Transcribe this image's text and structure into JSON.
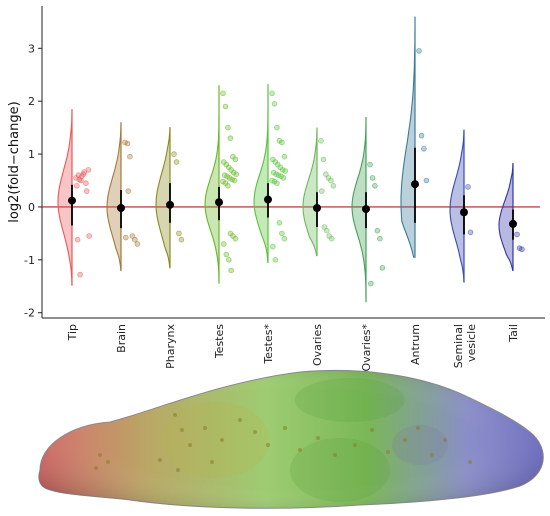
{
  "chart_data": {
    "type": "violin",
    "ylabel": "log2(fold−change)",
    "xlabel": "",
    "ylim": [
      -2.1,
      3.8
    ],
    "yticks": [
      -2,
      -1,
      0,
      1,
      2,
      3
    ],
    "reference_line_y": 0,
    "grid": false,
    "categories": [
      "Tip",
      "Brain",
      "Pharynx",
      "Testes",
      "Testes*",
      "Ovaries",
      "Ovaries*",
      "Antrum",
      "Seminal vesicle",
      "Tail"
    ],
    "category_label_lines": [
      [
        "Tip"
      ],
      [
        "Brain"
      ],
      [
        "Pharynx"
      ],
      [
        "Testes"
      ],
      [
        "Testes*"
      ],
      [
        "Ovaries"
      ],
      [
        "Ovaries*"
      ],
      [
        "Antrum"
      ],
      [
        "Seminal",
        "vesicle"
      ],
      [
        "Tail"
      ]
    ],
    "series": [
      {
        "category": "Tip",
        "color": "#e8595a",
        "median": 0.12,
        "q1": -0.35,
        "q3": 0.42,
        "min": -1.48,
        "max": 1.85,
        "mode": 0.1,
        "points": [
          0.55,
          0.6,
          0.5,
          0.62,
          0.45,
          0.7,
          0.4,
          0.52,
          0.58,
          0.66,
          0.3,
          -0.55,
          -0.62,
          -1.28
        ]
      },
      {
        "category": "Brain",
        "color": "#a57838",
        "median": -0.02,
        "q1": -0.4,
        "q3": 0.32,
        "min": -1.2,
        "max": 1.6,
        "mode": 0.0,
        "points": [
          1.22,
          1.2,
          0.95,
          -0.55,
          -0.62,
          -0.7,
          -0.58,
          0.3
        ]
      },
      {
        "category": "Pharynx",
        "color": "#8a8a22",
        "median": 0.04,
        "q1": -0.3,
        "q3": 0.45,
        "min": -1.15,
        "max": 1.5,
        "mode": 0.05,
        "points": [
          1.0,
          0.85,
          -0.5,
          -0.62
        ]
      },
      {
        "category": "Testes",
        "color": "#66b824",
        "median": 0.09,
        "q1": -0.25,
        "q3": 0.38,
        "min": -1.45,
        "max": 2.3,
        "mode": 0.05,
        "points": [
          2.15,
          1.9,
          1.5,
          1.3,
          0.95,
          0.9,
          0.85,
          0.8,
          0.75,
          0.7,
          0.65,
          0.62,
          0.6,
          0.58,
          0.55,
          0.52,
          0.5,
          0.48,
          0.45,
          0.4,
          -0.5,
          -0.55,
          -0.6,
          -0.7,
          -0.9,
          -1.0,
          -1.2
        ]
      },
      {
        "category": "Testes*",
        "color": "#58c23a",
        "median": 0.14,
        "q1": -0.2,
        "q3": 0.45,
        "min": -1.05,
        "max": 2.32,
        "mode": 0.1,
        "points": [
          2.15,
          1.95,
          1.5,
          1.25,
          1.22,
          0.95,
          0.9,
          0.85,
          0.8,
          0.75,
          0.7,
          0.68,
          0.65,
          0.62,
          0.6,
          0.58,
          0.55,
          0.5,
          0.48,
          0.45,
          -0.3,
          -0.5,
          -0.6,
          -0.75,
          -1.0
        ]
      },
      {
        "category": "Ovaries",
        "color": "#6aba5a",
        "median": -0.02,
        "q1": -0.38,
        "q3": 0.28,
        "min": -0.92,
        "max": 1.5,
        "mode": 0.0,
        "points": [
          1.25,
          0.9,
          0.62,
          0.55,
          0.5,
          0.4,
          0.3,
          -0.38,
          -0.45,
          -0.55,
          -0.6
        ]
      },
      {
        "category": "Ovaries*",
        "color": "#44a05a",
        "median": -0.04,
        "q1": -0.4,
        "q3": 0.28,
        "min": -1.8,
        "max": 1.7,
        "mode": 0.0,
        "points": [
          0.8,
          0.55,
          0.4,
          -0.45,
          -0.6,
          -1.15,
          -1.45
        ]
      },
      {
        "category": "Antrum",
        "color": "#3a7a9a",
        "median": 0.43,
        "q1": -0.3,
        "q3": 1.12,
        "min": -0.95,
        "max": 3.6,
        "mode": 0.1,
        "points": [
          2.95,
          1.35,
          1.1,
          0.5
        ]
      },
      {
        "category": "Seminal vesicle",
        "color": "#3a4ab0",
        "median": -0.1,
        "q1": -0.52,
        "q3": 0.22,
        "min": -1.42,
        "max": 1.45,
        "mode": -0.05,
        "points": [
          0.38,
          -0.48
        ]
      },
      {
        "category": "Tail",
        "color": "#3333aa",
        "median": -0.32,
        "q1": -0.62,
        "q3": -0.05,
        "min": -1.2,
        "max": 0.82,
        "mode": -0.35,
        "points": [
          -0.52,
          -0.78,
          -0.8
        ]
      }
    ]
  },
  "illustration": {
    "subject": "flatworm-body",
    "gradient_colors": [
      "#d86a6a",
      "#b9a866",
      "#9ecc72",
      "#7ab856",
      "#8a8ec8",
      "#6f6fc6"
    ]
  }
}
